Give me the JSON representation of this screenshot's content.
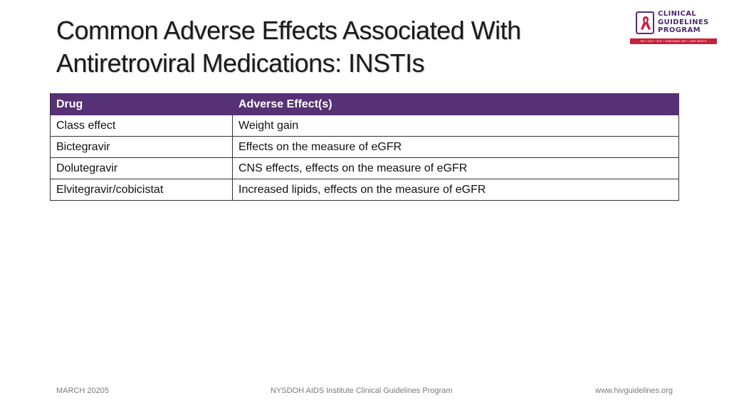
{
  "slide": {
    "title_line1": "Common Adverse Effects Associated With",
    "title_line2": "Antiretroviral Medications: INSTIs"
  },
  "logo": {
    "line1": "CLINICAL",
    "line2": "GUIDELINES",
    "line3": "PROGRAM",
    "tagline": "HIV • HCV • STIs • SUBSTANCE USE • LGBT HEALTH",
    "brand_color": "#4b2a6e",
    "ribbon_color": "#c8213b"
  },
  "table": {
    "headers": [
      "Drug",
      "Adverse Effect(s)"
    ],
    "header_color": "#563175",
    "rows": [
      {
        "drug": "Class effect",
        "effect": "Weight gain"
      },
      {
        "drug": "Bictegravir",
        "effect": "Effects on the measure of eGFR"
      },
      {
        "drug": "Dolutegravir",
        "effect": "CNS effects, effects on the measure of eGFR"
      },
      {
        "drug": "Elvitegravir/cobicistat",
        "effect": "Increased lipids, effects on the measure of eGFR"
      }
    ]
  },
  "footer": {
    "date": "MARCH 20205",
    "organization": "NYSDOH AIDS Institute Clinical Guidelines Program",
    "website": "www.hivguidelines.org"
  }
}
